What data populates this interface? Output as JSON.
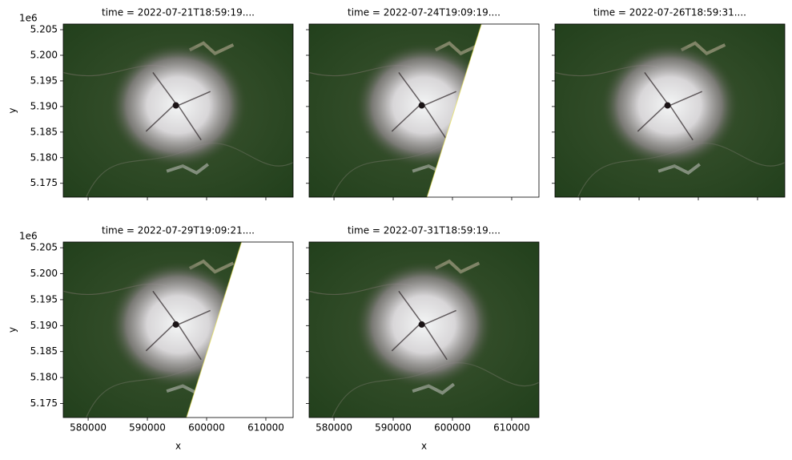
{
  "chart_data": [
    {
      "type": "image",
      "title": "time = 2022-07-21T18:59:19....",
      "ylabel": "y",
      "y_offset_label": "1e6",
      "xlim": [
        575800,
        614600
      ],
      "ylim": [
        5.1723,
        5.2061
      ],
      "xticks": [
        580000,
        590000,
        600000,
        610000
      ],
      "yticks": [
        5.175,
        {
          "value": 5.18,
          "label": "5.180"
        },
        5.185,
        {
          "value": 5.19,
          "label": "5.190"
        },
        5.195,
        {
          "value": 5.2,
          "label": "5.200"
        },
        5.205
      ],
      "show_xtick_labels": false,
      "show_ytick_labels": true
    },
    {
      "type": "image",
      "title": "time = 2022-07-24T19:09:19....",
      "xlim": [
        575800,
        614600
      ],
      "ylim": [
        5.1723,
        5.2061
      ],
      "xticks": [
        580000,
        590000,
        600000,
        610000
      ],
      "yticks": [
        5.175,
        5.18,
        5.185,
        5.19,
        5.195,
        5.2,
        5.205
      ],
      "show_xtick_labels": false,
      "show_ytick_labels": false,
      "nodata_edge_x": [
        595700,
        604900
      ]
    },
    {
      "type": "image",
      "title": "time = 2022-07-26T18:59:31....",
      "xlim": [
        575800,
        614600
      ],
      "ylim": [
        5.1723,
        5.2061
      ],
      "xticks": [
        580000,
        590000,
        600000,
        610000
      ],
      "yticks": [
        5.175,
        5.18,
        5.185,
        5.19,
        5.195,
        5.2,
        5.205
      ],
      "show_xtick_labels": false,
      "show_ytick_labels": false
    },
    {
      "type": "image",
      "title": "time = 2022-07-29T19:09:21....",
      "xlabel": "x",
      "ylabel": "y",
      "y_offset_label": "1e6",
      "xlim": [
        575800,
        614600
      ],
      "ylim": [
        5.1723,
        5.2061
      ],
      "xticks": [
        580000,
        590000,
        600000,
        610000
      ],
      "yticks": [
        5.175,
        {
          "value": 5.18,
          "label": "5.180"
        },
        5.185,
        {
          "value": 5.19,
          "label": "5.190"
        },
        5.195,
        {
          "value": 5.2,
          "label": "5.200"
        },
        5.205
      ],
      "show_xtick_labels": true,
      "show_ytick_labels": true,
      "nodata_edge_x": [
        596600,
        605900
      ]
    },
    {
      "type": "image",
      "title": "time = 2022-07-31T18:59:19....",
      "xlabel": "x",
      "xlim": [
        575800,
        614600
      ],
      "ylim": [
        5.1723,
        5.2061
      ],
      "xticks": [
        580000,
        590000,
        600000,
        610000
      ],
      "yticks": [
        5.175,
        5.18,
        5.185,
        5.19,
        5.195,
        5.2,
        5.205
      ],
      "show_xtick_labels": true,
      "show_ytick_labels": false
    }
  ]
}
